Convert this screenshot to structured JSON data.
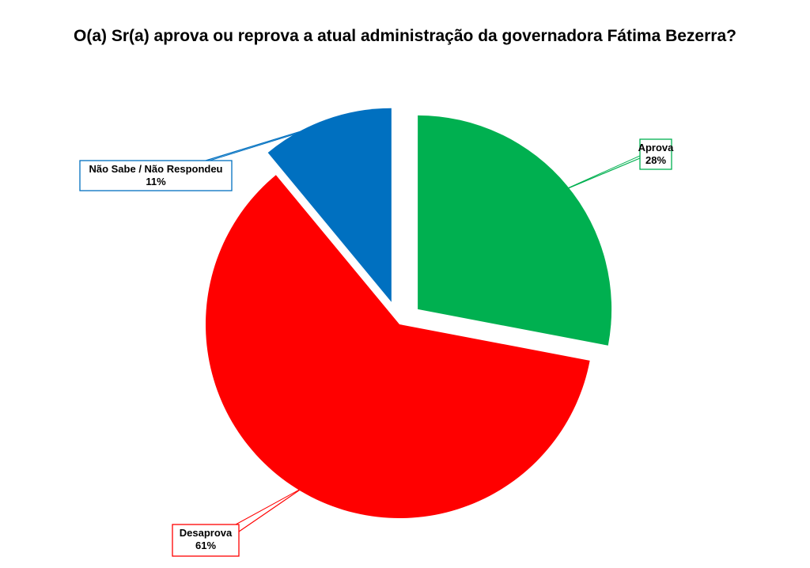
{
  "chart_data": {
    "type": "pie",
    "title": "O(a) Sr(a) aprova ou reprova a atual administração da governadora Fátima Bezerra?",
    "slices": [
      {
        "label": "Aprova",
        "value": 28,
        "value_label": "28%",
        "color": "#00b050",
        "exploded": true
      },
      {
        "label": "Desaprova",
        "value": 61,
        "value_label": "61%",
        "color": "#ff0000",
        "exploded": false
      },
      {
        "label": "Não Sabe / Não Respondeu",
        "value": 11,
        "value_label": "11%",
        "color": "#0070c0",
        "exploded": true
      }
    ],
    "start_angle": "12 o'clock",
    "direction": "clockwise",
    "legend": "none",
    "data_labels": "callouts"
  }
}
